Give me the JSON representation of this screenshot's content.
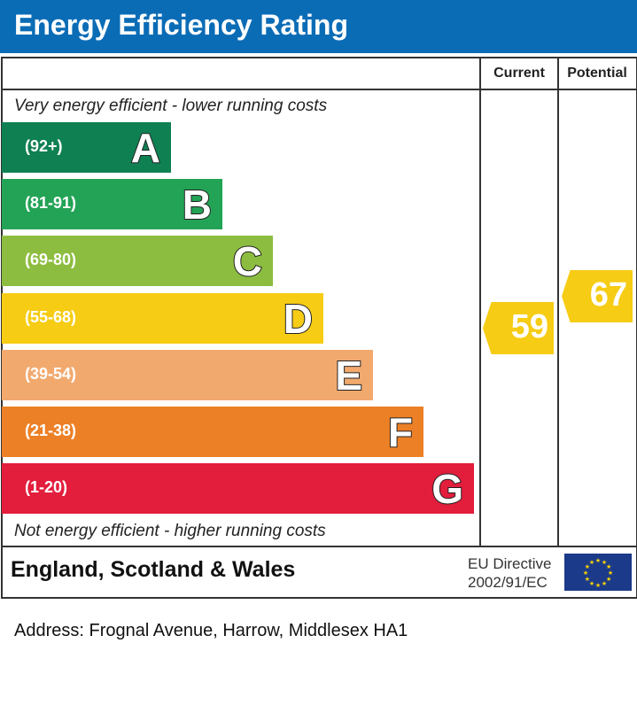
{
  "header": {
    "title": "Energy Efficiency Rating"
  },
  "columns": {
    "current": "Current",
    "potential": "Potential"
  },
  "notes": {
    "top": "Very energy efficient - lower running costs",
    "bottom": "Not energy efficient - higher running costs"
  },
  "chart_data": {
    "type": "bar",
    "categories": [
      "A",
      "B",
      "C",
      "D",
      "E",
      "F",
      "G"
    ],
    "ranges": [
      "(92+)",
      "(81-91)",
      "(69-80)",
      "(55-68)",
      "(39-54)",
      "(21-38)",
      "(1-20)"
    ],
    "colors": [
      "#0f8052",
      "#23a356",
      "#8dbd40",
      "#f6cc14",
      "#f2a96e",
      "#ec8026",
      "#e31d3c"
    ],
    "current": {
      "value": 59,
      "band": "D",
      "color": "#f6cc14"
    },
    "potential": {
      "value": 67,
      "band": "D",
      "color": "#f6cc14"
    }
  },
  "footer": {
    "region": "England, Scotland & Wales",
    "directive_line1": "EU Directive",
    "directive_line2": "2002/91/EC",
    "flag_icon": "eu-flag-icon"
  },
  "address": "Address: Frognal Avenue, Harrow, Middlesex HA1"
}
